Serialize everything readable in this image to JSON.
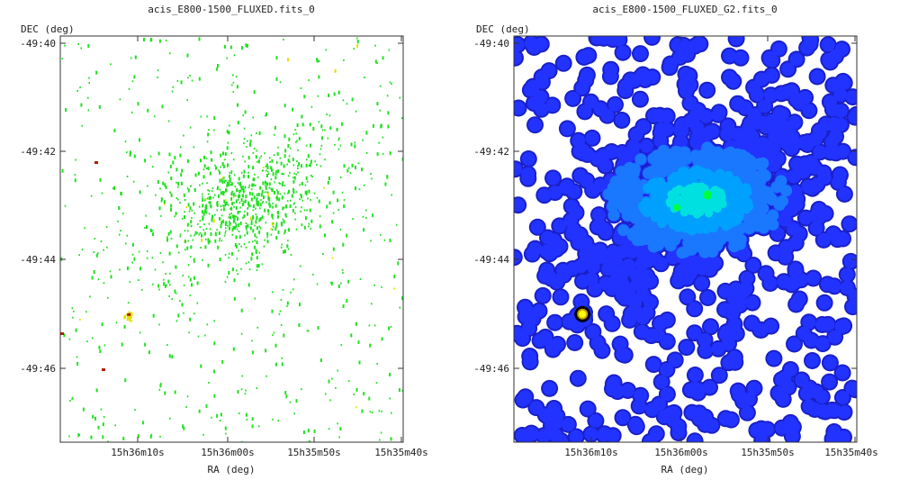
{
  "chart_data": [
    {
      "type": "scatter",
      "title": "acis_E800-1500_FLUXED.fits_0",
      "xlabel": "RA (deg)",
      "ylabel": "DEC (deg)",
      "x_ticks": [
        {
          "value": "15:36:10",
          "label": "15h36m10s"
        },
        {
          "value": "15:36:00",
          "label": "15h36m00s"
        },
        {
          "value": "15:35:50",
          "label": "15h35m50s"
        },
        {
          "value": "15:35:40",
          "label": "15h35m40s"
        }
      ],
      "y_ticks": [
        {
          "value": "-49:40",
          "label": "-49:40"
        },
        {
          "value": "-49:42",
          "label": "-49:42"
        },
        {
          "value": "-49:44",
          "label": "-49:44"
        },
        {
          "value": "-49:46",
          "label": "-49:46"
        }
      ],
      "colors": {
        "event": "#22e022",
        "bright": "#e6e000",
        "hot": "#b02000"
      },
      "dense_region": {
        "ra": "15:35:58",
        "dec": "-49:42.9"
      },
      "point_source": {
        "ra": "15:36:11",
        "dec": "-49:45.0"
      }
    },
    {
      "type": "heatmap",
      "title": "acis_E800-1500_FLUXED_G2.fits_0",
      "xlabel": "RA (deg)",
      "ylabel": "DEC (deg)",
      "x_ticks": [
        {
          "value": "15:36:10",
          "label": "15h36m10s"
        },
        {
          "value": "15:36:00",
          "label": "15h36m00s"
        },
        {
          "value": "15:35:50",
          "label": "15h35m50s"
        },
        {
          "value": "15:35:40",
          "label": "15h35m40s"
        }
      ],
      "y_ticks": [
        {
          "value": "-49:40",
          "label": "-49:40"
        },
        {
          "value": "-49:42",
          "label": "-49:42"
        },
        {
          "value": "-49:44",
          "label": "-49:44"
        },
        {
          "value": "-49:46",
          "label": "-49:46"
        }
      ],
      "colors": {
        "background": "#ffffff",
        "low": "#2233ff",
        "mid": "#00a0ff",
        "high": "#00e0e0",
        "peak": "#00ff40",
        "core": "#ffff00"
      },
      "dense_region": {
        "ra": "15:35:58",
        "dec": "-49:42.9"
      },
      "point_source": {
        "ra": "15:36:11",
        "dec": "-49:45.0"
      }
    }
  ]
}
